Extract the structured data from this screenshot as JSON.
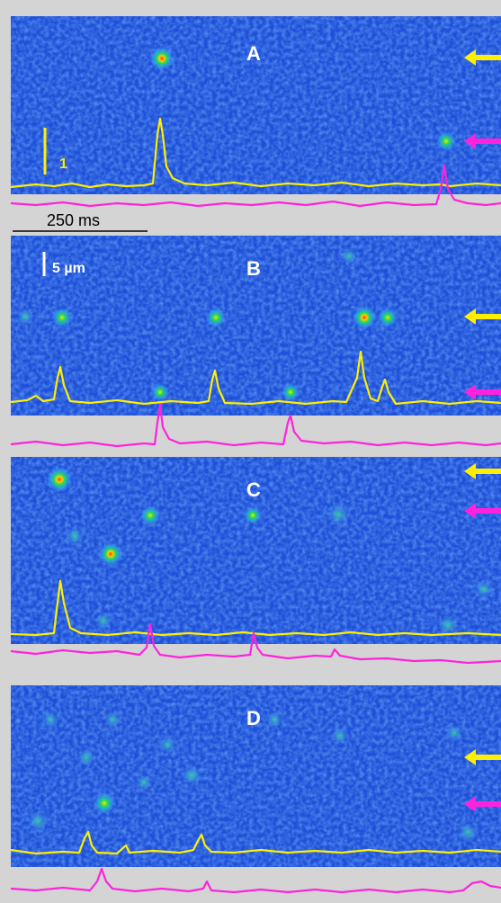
{
  "colors": {
    "background": "#d4d4d4",
    "image_blue": "#1e4fd8",
    "trace_yellow": "#ffee00",
    "trace_magenta": "#ff22dd",
    "label_white": "#ffffff",
    "spark_core": "#ff2a00",
    "spark_ring": "#22dd55"
  },
  "panels": [
    {
      "label": "A"
    },
    {
      "label": "B"
    },
    {
      "label": "C"
    },
    {
      "label": "D"
    }
  ],
  "scale_bars": {
    "amplitude_label": "1",
    "distance_label": "5 µm",
    "time_label": "250 ms"
  },
  "markers": {
    "yellow_arrow_icon": "arrow-left-icon",
    "magenta_arrow_icon": "arrow-left-icon"
  }
}
